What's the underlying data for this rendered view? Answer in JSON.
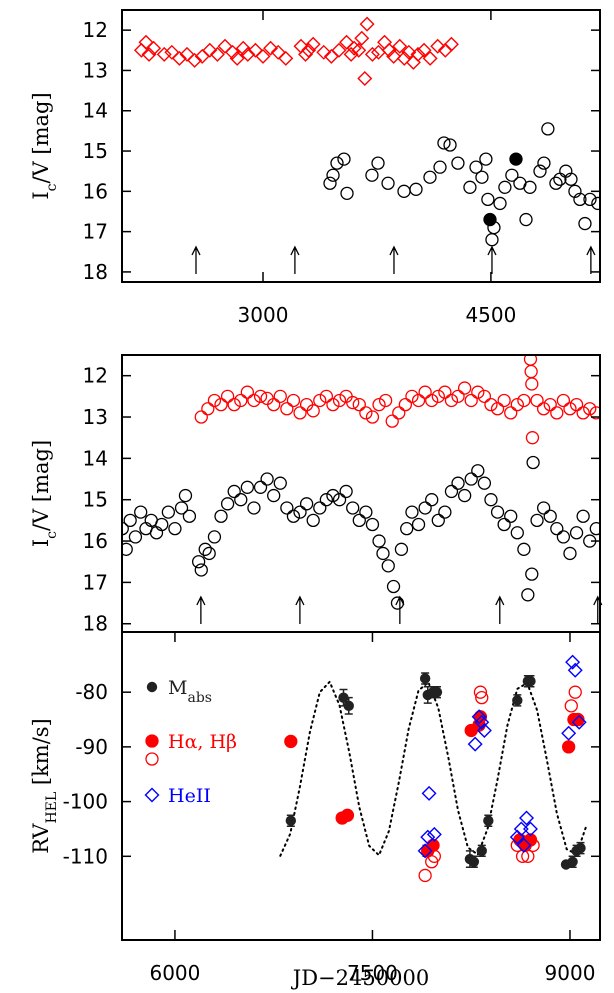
{
  "chart_data": [
    {
      "type": "scatter",
      "ylabel": "I",
      "ylabel_sub": "c",
      "ylabel_unit": "/V [mag]",
      "xlim": [
        2072,
        5218
      ],
      "xticks": [
        3000,
        4500
      ],
      "ylim": [
        18.25,
        11.5
      ],
      "yticks": [
        12,
        13,
        14,
        15,
        16,
        17,
        18
      ],
      "arrows_x": [
        2559,
        3210,
        3862,
        4507,
        5158
      ],
      "series": [
        {
          "marker": "diamond",
          "filled": false,
          "color": "#ff0000",
          "x": [
            2200,
            2230,
            2250,
            2280,
            2350,
            2400,
            2450,
            2500,
            2550,
            2600,
            2650,
            2700,
            2750,
            2800,
            2830,
            2870,
            2900,
            2950,
            3000,
            3050,
            3100,
            3150,
            3250,
            3280,
            3300,
            3330,
            3400,
            3450,
            3500,
            3550,
            3580,
            3600,
            3630,
            3650,
            3670,
            3685,
            3720,
            3760,
            3800,
            3830,
            3860,
            3900,
            3930,
            3960,
            3990,
            4020,
            4060,
            4100,
            4150,
            4200,
            4240
          ],
          "values": [
            12.5,
            12.3,
            12.6,
            12.45,
            12.6,
            12.55,
            12.7,
            12.6,
            12.75,
            12.65,
            12.5,
            12.6,
            12.4,
            12.55,
            12.7,
            12.45,
            12.6,
            12.5,
            12.65,
            12.45,
            12.55,
            12.7,
            12.4,
            12.6,
            12.5,
            12.35,
            12.55,
            12.65,
            12.5,
            12.3,
            12.6,
            12.45,
            12.5,
            12.2,
            13.2,
            11.85,
            12.6,
            12.55,
            12.3,
            12.5,
            12.65,
            12.4,
            12.7,
            12.55,
            12.8,
            12.6,
            12.5,
            12.7,
            12.4,
            12.5,
            12.35
          ]
        },
        {
          "marker": "circle",
          "filled": false,
          "color": "#000000",
          "x": [
            3441,
            3461,
            3487,
            3533,
            3553,
            3717,
            3757,
            3823,
            3928,
            4007,
            4099,
            4165,
            4191,
            4231,
            4283,
            4362,
            4402,
            4441,
            4467,
            4480,
            4507,
            4520,
            4560,
            4592,
            4638,
            4691,
            4731,
            4757,
            4823,
            4849,
            4875,
            4928,
            4954,
            4993,
            5027,
            5053,
            5086,
            5119,
            5152,
            5204
          ],
          "values": [
            15.8,
            15.6,
            15.3,
            15.2,
            16.05,
            15.6,
            15.3,
            15.8,
            16,
            15.95,
            15.65,
            15.4,
            14.8,
            14.85,
            15.3,
            15.9,
            15.4,
            15.65,
            15.2,
            16.2,
            17.2,
            16.9,
            16.3,
            15.9,
            15.6,
            15.8,
            16.7,
            15.9,
            15.5,
            15.3,
            14.45,
            15.8,
            15.7,
            15.5,
            15.7,
            16.0,
            16.2,
            16.8,
            16.2,
            16.3
          ]
        },
        {
          "marker": "circle",
          "filled": true,
          "color": "#000000",
          "x": [
            4494,
            4665
          ],
          "values": [
            16.7,
            15.2
          ]
        }
      ]
    },
    {
      "type": "scatter",
      "ylabel": "I",
      "ylabel_sub": "c",
      "ylabel_unit": "/V [mag]",
      "xlim": [
        5598,
        9228
      ],
      "ylim": [
        18.2,
        11.5
      ],
      "yticks": [
        12,
        13,
        14,
        15,
        16,
        17,
        18
      ],
      "arrows_x": [
        6197,
        6949,
        7708,
        8467,
        9211
      ],
      "series": [
        {
          "marker": "circle",
          "filled": false,
          "color": "#ff0000",
          "x": [
            6200,
            6250,
            6300,
            6350,
            6400,
            6450,
            6500,
            6550,
            6600,
            6650,
            6700,
            6750,
            6800,
            6850,
            6900,
            6950,
            7000,
            7050,
            7100,
            7150,
            7200,
            7250,
            7300,
            7350,
            7400,
            7450,
            7500,
            7550,
            7600,
            7650,
            7700,
            7750,
            7800,
            7850,
            7900,
            7950,
            8000,
            8050,
            8100,
            8150,
            8200,
            8250,
            8300,
            8350,
            8400,
            8450,
            8500,
            8550,
            8600,
            8650,
            8700,
            8705,
            8710,
            8715,
            8750,
            8800,
            8850,
            8900,
            8950,
            9000,
            9050,
            9100,
            9150,
            9200
          ],
          "values": [
            13.0,
            12.8,
            12.6,
            12.7,
            12.5,
            12.7,
            12.6,
            12.4,
            12.6,
            12.5,
            12.55,
            12.7,
            12.5,
            12.8,
            12.6,
            12.9,
            12.7,
            12.85,
            12.6,
            12.5,
            12.7,
            12.6,
            12.5,
            12.65,
            12.7,
            12.9,
            13.0,
            12.7,
            12.6,
            13.1,
            12.9,
            12.7,
            12.5,
            12.6,
            12.4,
            12.6,
            12.5,
            12.4,
            12.6,
            12.5,
            12.3,
            12.6,
            12.4,
            12.5,
            12.7,
            12.8,
            12.6,
            12.9,
            12.7,
            12.6,
            11.6,
            11.9,
            12.2,
            13.5,
            12.6,
            12.8,
            12.7,
            12.9,
            12.6,
            12.8,
            12.7,
            12.9,
            12.8,
            12.9
          ]
        },
        {
          "marker": "circle",
          "filled": false,
          "color": "#000000",
          "x": [
            5600,
            5630,
            5660,
            5700,
            5740,
            5780,
            5820,
            5860,
            5900,
            5950,
            6000,
            6050,
            6080,
            6110,
            6180,
            6200,
            6230,
            6260,
            6300,
            6350,
            6400,
            6450,
            6500,
            6550,
            6600,
            6650,
            6700,
            6750,
            6800,
            6850,
            6900,
            6950,
            7000,
            7050,
            7100,
            7150,
            7200,
            7250,
            7300,
            7350,
            7400,
            7450,
            7500,
            7550,
            7580,
            7620,
            7660,
            7690,
            7720,
            7760,
            7800,
            7850,
            7900,
            7950,
            8000,
            8050,
            8100,
            8150,
            8200,
            8250,
            8300,
            8350,
            8400,
            8450,
            8500,
            8550,
            8600,
            8650,
            8680,
            8710,
            8720,
            8750,
            8800,
            8850,
            8900,
            8950,
            9000,
            9050,
            9100,
            9150,
            9200
          ],
          "values": [
            15.7,
            16.2,
            15.5,
            15.9,
            15.3,
            15.7,
            15.5,
            15.8,
            15.6,
            15.3,
            15.7,
            15.2,
            14.9,
            15.4,
            16.5,
            16.7,
            16.2,
            16.3,
            15.9,
            15.4,
            15.1,
            14.8,
            15.0,
            14.7,
            15.2,
            14.7,
            14.5,
            14.9,
            14.6,
            15.2,
            15.4,
            15.3,
            15.1,
            15.5,
            15.2,
            15.0,
            14.9,
            15.0,
            14.8,
            15.2,
            15.5,
            15.3,
            15.6,
            16.0,
            16.3,
            16.6,
            17.1,
            17.5,
            16.2,
            15.7,
            15.3,
            15.6,
            15.2,
            15.0,
            15.5,
            15.3,
            14.8,
            14.6,
            14.9,
            14.5,
            14.3,
            14.6,
            15.0,
            15.3,
            15.6,
            15.4,
            15.8,
            16.2,
            17.3,
            16.8,
            14.1,
            15.5,
            15.2,
            15.4,
            15.7,
            15.9,
            16.3,
            15.8,
            15.4,
            16.0,
            15.7
          ]
        }
      ]
    },
    {
      "type": "scatter",
      "ylabel": "RV",
      "ylabel_sub": "HEL",
      "ylabel_unit": " [km/s]",
      "xlabel": "JD−2450000",
      "xlim": [
        5598,
        9228
      ],
      "xticks": [
        6000,
        7500,
        9000
      ],
      "ylim": [
        -125.3,
        -69
      ],
      "yticks": [
        -80,
        -90,
        -100,
        -110
      ],
      "legend": "upper left",
      "series": [
        {
          "marker": "line",
          "linestyle": "dotted",
          "color": "#000000",
          "x": [
            6800,
            6875,
            6950,
            7025,
            7100,
            7175,
            7250,
            7325,
            7400,
            7475,
            7550,
            7625,
            7700,
            7775,
            7850,
            7925,
            8000,
            8075,
            8150,
            8225,
            8300,
            8375,
            8450,
            8525,
            8600,
            8675,
            8750,
            8825,
            8900,
            8975,
            9050,
            9125
          ],
          "values": [
            -109.9,
            -105.9,
            -97.2,
            -87.3,
            -80.0,
            -78.1,
            -82.4,
            -91.1,
            -101.0,
            -108.1,
            -109.8,
            -105.4,
            -96.5,
            -86.7,
            -79.7,
            -78.2,
            -82.9,
            -91.8,
            -101.6,
            -108.4,
            -109.7,
            -104.9,
            -95.9,
            -86.1,
            -79.4,
            -78.3,
            -83.3,
            -92.4,
            -102.1,
            -108.7,
            -109.6,
            -104.4
          ]
        },
        {
          "name": "M",
          "name_sub": "abs",
          "marker": "square",
          "filled": true,
          "color": "#222222",
          "x": [
            6880,
            7280,
            7320,
            7900,
            7910,
            7920,
            7960,
            7990,
            8240,
            8270,
            8330,
            8380,
            8600,
            8680,
            8700,
            8970,
            9020,
            9050,
            9080
          ],
          "values": [
            -103.5,
            -81,
            -82.5,
            -77.5,
            -109,
            -80.5,
            -80,
            -80,
            -110.5,
            -111,
            -109,
            -103.5,
            -81.5,
            -78,
            -78,
            -111.5,
            -111,
            -109,
            -108.5
          ],
          "errors": [
            1,
            1.5,
            1.5,
            1,
            1,
            1.5,
            1,
            1,
            1.5,
            1,
            1,
            1,
            1,
            1,
            1,
            0.5,
            1,
            1,
            1
          ]
        },
        {
          "name": "Hα, Hβ",
          "marker": "circle",
          "filled": true,
          "color": "#ff0000",
          "x": [
            6880,
            7270,
            7310,
            7920,
            7960,
            8250,
            8310,
            8320,
            8620,
            8660,
            8700,
            8990,
            9030,
            9060
          ],
          "values": [
            -89,
            -103,
            -102.5,
            -109,
            -108,
            -87,
            -86,
            -84.5,
            -107,
            -108,
            -107,
            -90,
            -85,
            -85
          ]
        },
        {
          "marker": "circle",
          "filled": false,
          "color": "#ff0000",
          "x": [
            7900,
            7950,
            7970,
            8320,
            8330,
            8600,
            8640,
            8680,
            8720,
            9010,
            9040,
            9060
          ],
          "values": [
            -113.5,
            -111,
            -110,
            -80,
            -81,
            -108,
            -110,
            -110,
            -108,
            -82.5,
            -80,
            -85
          ]
        },
        {
          "name": "HeII",
          "marker": "diamond",
          "filled": false,
          "color": "#0000ff",
          "x": [
            7900,
            7920,
            7930,
            7970,
            8280,
            8310,
            8330,
            8350,
            8600,
            8630,
            8650,
            8670,
            8700,
            8990,
            9020,
            9040,
            9070
          ],
          "values": [
            -109,
            -106.5,
            -98.5,
            -106,
            -89.5,
            -84.5,
            -85.5,
            -87,
            -106.5,
            -105,
            -108,
            -103,
            -105,
            -87.5,
            -74.5,
            -76,
            -85.5
          ]
        }
      ]
    }
  ]
}
